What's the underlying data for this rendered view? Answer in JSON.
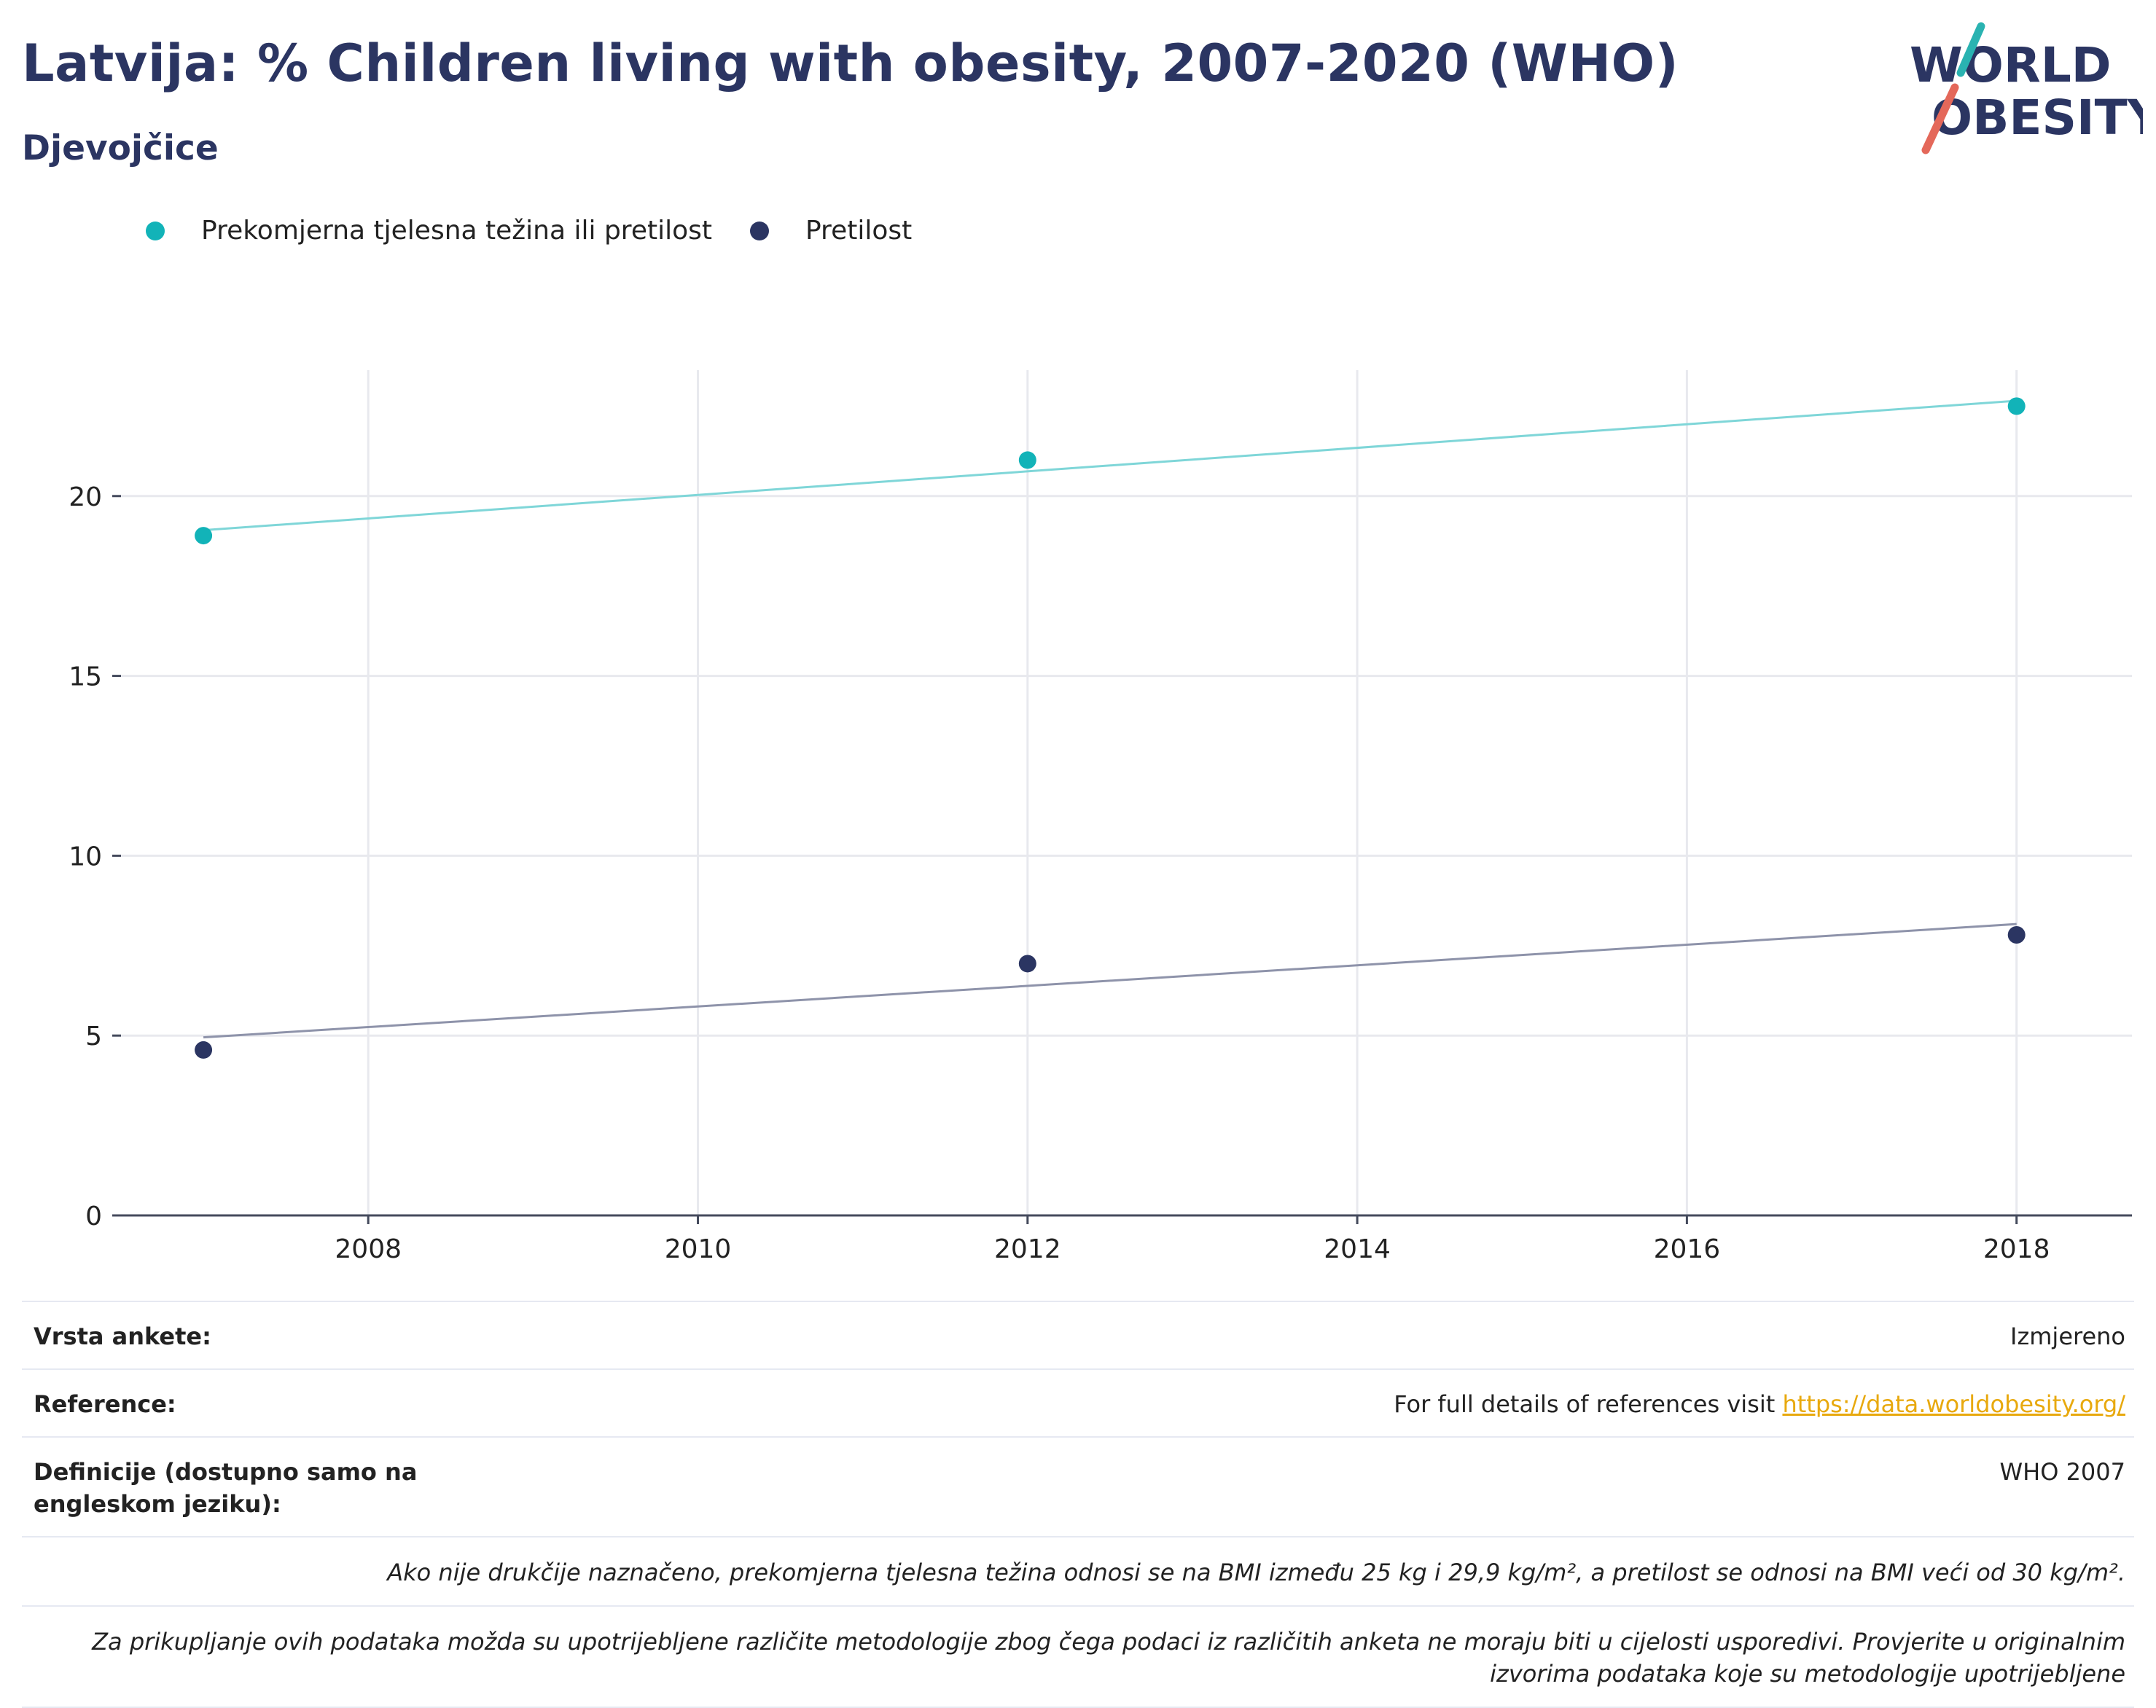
{
  "header": {
    "title": "Latvija: % Children living with obesity, 2007-2020 (WHO)",
    "subtitle": "Djevojčice"
  },
  "logo": {
    "line1": "WORLD",
    "line2": "OBESITY",
    "accent_colors": [
      "#2ab3b1",
      "#e4685a"
    ]
  },
  "legend": [
    {
      "label": "Prekomjerna tjelesna težina ili pretilost",
      "color": "#12b3b8"
    },
    {
      "label": "Pretilost",
      "color": "#2b3562"
    }
  ],
  "chart_data": {
    "type": "scatter",
    "title": "Latvija: % Children living with obesity, 2007-2020 (WHO)",
    "subtitle": "Djevojčice",
    "xlabel": "",
    "ylabel": "",
    "xlim": [
      2006.5,
      2018.7
    ],
    "ylim": [
      0,
      23.5
    ],
    "x_ticks": [
      2008,
      2010,
      2012,
      2014,
      2016,
      2018
    ],
    "y_ticks": [
      0,
      5,
      10,
      15,
      20
    ],
    "grid": true,
    "legend_position": "top-left",
    "series": [
      {
        "name": "Prekomjerna tjelesna težina ili pretilost",
        "color": "#12b3b8",
        "trend_color": "#7fd6d8",
        "points": [
          {
            "x": 2007,
            "y": 18.9
          },
          {
            "x": 2012,
            "y": 21.0
          },
          {
            "x": 2018,
            "y": 22.5
          }
        ],
        "trendline": [
          {
            "x": 2007,
            "y": 19.05
          },
          {
            "x": 2018,
            "y": 22.65
          }
        ]
      },
      {
        "name": "Pretilost",
        "color": "#2b3562",
        "trend_color": "#8e93aa",
        "points": [
          {
            "x": 2007,
            "y": 4.6
          },
          {
            "x": 2012,
            "y": 7.0
          },
          {
            "x": 2018,
            "y": 7.8
          }
        ],
        "trendline": [
          {
            "x": 2007,
            "y": 4.95
          },
          {
            "x": 2018,
            "y": 8.1
          }
        ]
      }
    ]
  },
  "notes": {
    "survey_label": "Vrsta ankete:",
    "survey_value": "Izmjereno",
    "references_label": "Reference:",
    "references_text": "For full details of references visit ",
    "references_link": "https://data.worldobesity.org/",
    "definitions_label": "Definicije (dostupno samo na engleskom jeziku):",
    "definitions_value": "WHO 2007",
    "bmi_note": "Ako nije drukčije naznačeno, prekomjerna tjelesna težina odnosi se na BMI između 25 kg i 29,9 kg/m², a pretilost se odnosi na BMI veći od 30 kg/m².",
    "method_note": "Za prikupljanje ovih podataka možda su upotrijebljene različite metodologije zbog čega podaci iz različitih anketa ne moraju biti u cijelosti usporedivi. Provjerite u originalnim izvorima podataka koje su metodologije upotrijebljene"
  }
}
